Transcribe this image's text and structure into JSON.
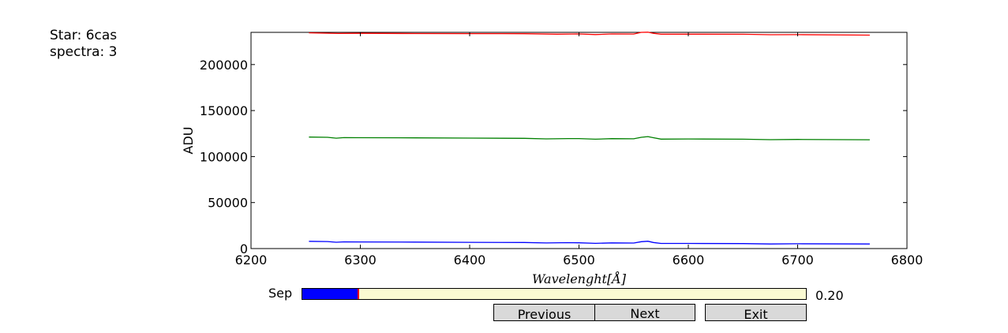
{
  "info": {
    "star": "Star: 6cas",
    "spectra": "spectra: 3"
  },
  "chart_data": {
    "type": "line",
    "xlabel": "Wavelenght[Å]",
    "ylabel": "ADU",
    "xlim": [
      6200,
      6800
    ],
    "ylim": [
      0,
      235000
    ],
    "xticks": [
      6200,
      6300,
      6400,
      6500,
      6600,
      6700,
      6800
    ],
    "yticks": [
      0,
      50000,
      100000,
      150000,
      200000
    ],
    "grid": false,
    "series": [
      {
        "color": "#ff0000",
        "x": [
          6253,
          6280,
          6300,
          6350,
          6400,
          6450,
          6480,
          6500,
          6515,
          6530,
          6550,
          6557,
          6563,
          6568,
          6575,
          6600,
          6650,
          6675,
          6700,
          6766
        ],
        "y": [
          234500,
          233800,
          234000,
          233700,
          233600,
          233500,
          233000,
          233300,
          232600,
          233300,
          233200,
          235000,
          235200,
          234000,
          233000,
          233000,
          232900,
          232400,
          232500,
          232000
        ]
      },
      {
        "color": "#008000",
        "x": [
          6253,
          6270,
          6278,
          6285,
          6300,
          6350,
          6400,
          6450,
          6470,
          6490,
          6500,
          6515,
          6530,
          6550,
          6557,
          6563,
          6568,
          6575,
          6600,
          6650,
          6675,
          6700,
          6766
        ],
        "y": [
          121200,
          120900,
          120000,
          120600,
          120500,
          120300,
          120100,
          119800,
          119200,
          119600,
          119600,
          118900,
          119500,
          119300,
          120900,
          121700,
          120500,
          119000,
          119100,
          118900,
          118400,
          118600,
          118300
        ]
      },
      {
        "color": "#0000ff",
        "x": [
          6253,
          6270,
          6278,
          6285,
          6300,
          6350,
          6400,
          6450,
          6470,
          6490,
          6500,
          6515,
          6530,
          6550,
          6557,
          6563,
          6568,
          6575,
          6600,
          6650,
          6675,
          6700,
          6766
        ],
        "y": [
          7900,
          7600,
          6900,
          7300,
          7200,
          7000,
          6800,
          6600,
          6100,
          6400,
          6300,
          5700,
          6200,
          6000,
          7500,
          8000,
          6600,
          5600,
          5600,
          5400,
          5000,
          5200,
          5000
        ]
      }
    ]
  },
  "slider": {
    "label": "Sep",
    "value": 0.2,
    "value_text": "0.20",
    "fill_color": "#0000ff",
    "track_color": "#fafad2",
    "handle_color": "#ff0000"
  },
  "buttons": {
    "previous": "Previous",
    "next": "Next",
    "exit": "Exit"
  }
}
